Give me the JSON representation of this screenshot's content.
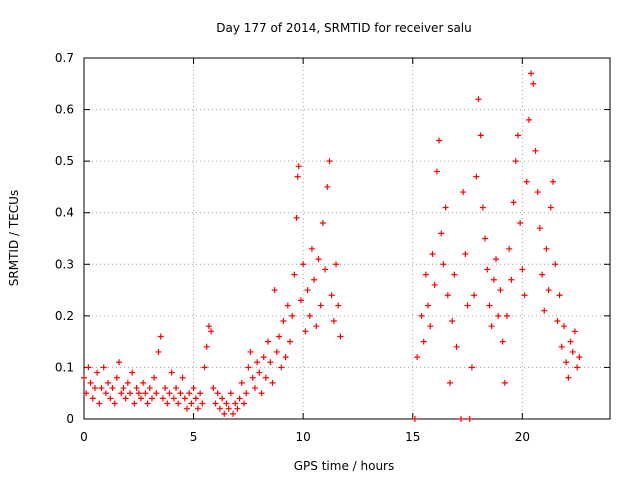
{
  "chart_data": {
    "type": "scatter",
    "title": "Day 177 of 2014, SRMTID for receiver salu",
    "xlabel": "GPS time / hours",
    "ylabel": "SRMTID / TECUs",
    "xlim": [
      0,
      24
    ],
    "ylim": [
      0,
      0.7
    ],
    "x_ticks": [
      0,
      5,
      10,
      15,
      20
    ],
    "y_ticks": [
      0,
      0.1,
      0.2,
      0.3,
      0.4,
      0.5,
      0.6,
      0.7
    ],
    "x_tick_labels": [
      "0",
      "5",
      "10",
      "15",
      "20"
    ],
    "y_tick_labels": [
      "0",
      "0.1",
      "0.2",
      "0.3",
      "0.4",
      "0.5",
      "0.6",
      "0.7"
    ],
    "grid": true,
    "marker": "+",
    "series": [
      {
        "name": "SRMTID",
        "color": "#ff0000",
        "points": [
          [
            0.0,
            0.08
          ],
          [
            0.1,
            0.05
          ],
          [
            0.2,
            0.1
          ],
          [
            0.3,
            0.07
          ],
          [
            0.4,
            0.04
          ],
          [
            0.5,
            0.06
          ],
          [
            0.6,
            0.09
          ],
          [
            0.7,
            0.03
          ],
          [
            0.8,
            0.06
          ],
          [
            0.9,
            0.1
          ],
          [
            1.0,
            0.05
          ],
          [
            1.1,
            0.07
          ],
          [
            1.2,
            0.04
          ],
          [
            1.3,
            0.06
          ],
          [
            1.4,
            0.03
          ],
          [
            1.5,
            0.08
          ],
          [
            1.6,
            0.11
          ],
          [
            1.7,
            0.05
          ],
          [
            1.8,
            0.06
          ],
          [
            1.9,
            0.04
          ],
          [
            2.0,
            0.07
          ],
          [
            2.1,
            0.05
          ],
          [
            2.2,
            0.09
          ],
          [
            2.3,
            0.03
          ],
          [
            2.4,
            0.06
          ],
          [
            2.5,
            0.05
          ],
          [
            2.6,
            0.04
          ],
          [
            2.7,
            0.07
          ],
          [
            2.8,
            0.05
          ],
          [
            2.9,
            0.03
          ],
          [
            3.0,
            0.06
          ],
          [
            3.1,
            0.04
          ],
          [
            3.2,
            0.08
          ],
          [
            3.3,
            0.05
          ],
          [
            3.4,
            0.13
          ],
          [
            3.5,
            0.16
          ],
          [
            3.6,
            0.04
          ],
          [
            3.7,
            0.06
          ],
          [
            3.8,
            0.03
          ],
          [
            3.9,
            0.05
          ],
          [
            4.0,
            0.09
          ],
          [
            4.1,
            0.04
          ],
          [
            4.2,
            0.06
          ],
          [
            4.3,
            0.03
          ],
          [
            4.4,
            0.05
          ],
          [
            4.5,
            0.08
          ],
          [
            4.6,
            0.04
          ],
          [
            4.7,
            0.02
          ],
          [
            4.8,
            0.05
          ],
          [
            4.9,
            0.03
          ],
          [
            5.0,
            0.06
          ],
          [
            5.1,
            0.04
          ],
          [
            5.2,
            0.02
          ],
          [
            5.3,
            0.05
          ],
          [
            5.4,
            0.03
          ],
          [
            5.5,
            0.1
          ],
          [
            5.6,
            0.14
          ],
          [
            5.7,
            0.18
          ],
          [
            5.8,
            0.17
          ],
          [
            5.9,
            0.06
          ],
          [
            6.0,
            0.03
          ],
          [
            6.1,
            0.05
          ],
          [
            6.2,
            0.02
          ],
          [
            6.3,
            0.04
          ],
          [
            6.4,
            0.01
          ],
          [
            6.5,
            0.03
          ],
          [
            6.6,
            0.02
          ],
          [
            6.7,
            0.05
          ],
          [
            6.8,
            0.01
          ],
          [
            6.9,
            0.03
          ],
          [
            7.0,
            0.02
          ],
          [
            7.1,
            0.04
          ],
          [
            7.2,
            0.07
          ],
          [
            7.3,
            0.03
          ],
          [
            7.4,
            0.05
          ],
          [
            7.5,
            0.1
          ],
          [
            7.6,
            0.13
          ],
          [
            7.7,
            0.08
          ],
          [
            7.8,
            0.06
          ],
          [
            7.9,
            0.11
          ],
          [
            8.0,
            0.09
          ],
          [
            8.1,
            0.05
          ],
          [
            8.2,
            0.12
          ],
          [
            8.3,
            0.08
          ],
          [
            8.4,
            0.15
          ],
          [
            8.5,
            0.11
          ],
          [
            8.6,
            0.07
          ],
          [
            8.7,
            0.25
          ],
          [
            8.8,
            0.13
          ],
          [
            8.9,
            0.16
          ],
          [
            9.0,
            0.1
          ],
          [
            9.1,
            0.19
          ],
          [
            9.2,
            0.12
          ],
          [
            9.3,
            0.22
          ],
          [
            9.4,
            0.15
          ],
          [
            9.5,
            0.2
          ],
          [
            9.6,
            0.28
          ],
          [
            9.7,
            0.39
          ],
          [
            9.75,
            0.47
          ],
          [
            9.8,
            0.49
          ],
          [
            9.9,
            0.23
          ],
          [
            10.0,
            0.3
          ],
          [
            10.1,
            0.17
          ],
          [
            10.2,
            0.25
          ],
          [
            10.3,
            0.2
          ],
          [
            10.4,
            0.33
          ],
          [
            10.5,
            0.27
          ],
          [
            10.6,
            0.18
          ],
          [
            10.7,
            0.31
          ],
          [
            10.8,
            0.22
          ],
          [
            10.9,
            0.38
          ],
          [
            11.0,
            0.29
          ],
          [
            11.1,
            0.45
          ],
          [
            11.2,
            0.5
          ],
          [
            11.3,
            0.24
          ],
          [
            11.4,
            0.19
          ],
          [
            11.5,
            0.3
          ],
          [
            11.6,
            0.22
          ],
          [
            11.7,
            0.16
          ],
          [
            15.1,
            0.0
          ],
          [
            15.2,
            0.12
          ],
          [
            15.4,
            0.2
          ],
          [
            15.5,
            0.15
          ],
          [
            15.6,
            0.28
          ],
          [
            15.7,
            0.22
          ],
          [
            15.8,
            0.18
          ],
          [
            15.9,
            0.32
          ],
          [
            16.0,
            0.26
          ],
          [
            16.1,
            0.48
          ],
          [
            16.2,
            0.54
          ],
          [
            16.3,
            0.36
          ],
          [
            16.4,
            0.3
          ],
          [
            16.5,
            0.41
          ],
          [
            16.6,
            0.24
          ],
          [
            16.7,
            0.07
          ],
          [
            16.8,
            0.19
          ],
          [
            16.9,
            0.28
          ],
          [
            17.0,
            0.14
          ],
          [
            17.2,
            0.0
          ],
          [
            17.3,
            0.44
          ],
          [
            17.4,
            0.32
          ],
          [
            17.5,
            0.22
          ],
          [
            17.6,
            0.0
          ],
          [
            17.7,
            0.1
          ],
          [
            17.8,
            0.24
          ],
          [
            17.9,
            0.47
          ],
          [
            18.0,
            0.62
          ],
          [
            18.1,
            0.55
          ],
          [
            18.2,
            0.41
          ],
          [
            18.3,
            0.35
          ],
          [
            18.4,
            0.29
          ],
          [
            18.5,
            0.22
          ],
          [
            18.6,
            0.18
          ],
          [
            18.7,
            0.27
          ],
          [
            18.8,
            0.31
          ],
          [
            18.9,
            0.2
          ],
          [
            19.0,
            0.25
          ],
          [
            19.1,
            0.15
          ],
          [
            19.2,
            0.07
          ],
          [
            19.3,
            0.2
          ],
          [
            19.4,
            0.33
          ],
          [
            19.5,
            0.27
          ],
          [
            19.6,
            0.42
          ],
          [
            19.7,
            0.5
          ],
          [
            19.8,
            0.55
          ],
          [
            19.9,
            0.38
          ],
          [
            20.0,
            0.29
          ],
          [
            20.1,
            0.24
          ],
          [
            20.2,
            0.46
          ],
          [
            20.3,
            0.58
          ],
          [
            20.4,
            0.67
          ],
          [
            20.5,
            0.65
          ],
          [
            20.6,
            0.52
          ],
          [
            20.7,
            0.44
          ],
          [
            20.8,
            0.37
          ],
          [
            20.9,
            0.28
          ],
          [
            21.0,
            0.21
          ],
          [
            21.1,
            0.33
          ],
          [
            21.2,
            0.25
          ],
          [
            21.3,
            0.41
          ],
          [
            21.4,
            0.46
          ],
          [
            21.5,
            0.3
          ],
          [
            21.6,
            0.19
          ],
          [
            21.7,
            0.24
          ],
          [
            21.8,
            0.14
          ],
          [
            21.9,
            0.18
          ],
          [
            22.0,
            0.11
          ],
          [
            22.1,
            0.08
          ],
          [
            22.2,
            0.15
          ],
          [
            22.3,
            0.13
          ],
          [
            22.4,
            0.17
          ],
          [
            22.5,
            0.1
          ],
          [
            22.6,
            0.12
          ]
        ]
      }
    ]
  }
}
